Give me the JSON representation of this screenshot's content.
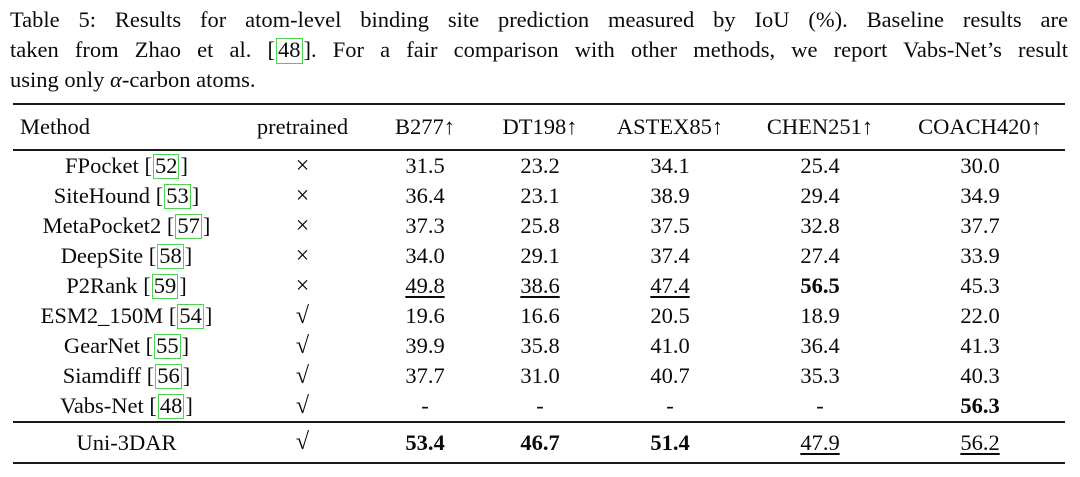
{
  "caption": {
    "line1": "Table 5: Results for atom-level binding site prediction measured by IoU (%). Baseline results are",
    "line2_pre": "taken from Zhao et al. ",
    "bracket_open": "[",
    "cite": "48",
    "bracket_close": "]",
    "line2_post": ". For a fair comparison with other methods, we report Vabs-Net’s result",
    "line3_pre": "using only ",
    "alpha": "α",
    "line3_post": "-carbon atoms."
  },
  "table": {
    "headers": [
      "Method",
      "pretrained",
      "B277↑",
      "DT198↑",
      "ASTEX85↑",
      "CHEN251↑",
      "COACH420↑"
    ],
    "punct": {
      "open": "[",
      "close": "]"
    },
    "citation_border_color": "#4fd24f",
    "rows": [
      {
        "name": "FPocket",
        "cite": "52",
        "mark": "×",
        "v1": "31.5",
        "v2": "23.2",
        "v3": "34.1",
        "v4": "25.4",
        "v5": "30.0"
      },
      {
        "name": "SiteHound",
        "cite": "53",
        "mark": "×",
        "v1": "36.4",
        "v2": "23.1",
        "v3": "38.9",
        "v4": "29.4",
        "v5": "34.9"
      },
      {
        "name": "MetaPocket2",
        "cite": "57",
        "mark": "×",
        "v1": "37.3",
        "v2": "25.8",
        "v3": "37.5",
        "v4": "32.8",
        "v5": "37.7"
      },
      {
        "name": "DeepSite",
        "cite": "58",
        "mark": "×",
        "v1": "34.0",
        "v2": "29.1",
        "v3": "37.4",
        "v4": "27.4",
        "v5": "33.9"
      },
      {
        "name": "P2Rank",
        "cite": "59",
        "mark": "×",
        "v1": "49.8",
        "v2": "38.6",
        "v3": "47.4",
        "v4": "56.5",
        "v5": "45.3"
      },
      {
        "name": "ESM2_150M",
        "cite": "54",
        "mark": "√",
        "v1": "19.6",
        "v2": "16.6",
        "v3": "20.5",
        "v4": "18.9",
        "v5": "22.0"
      },
      {
        "name": "GearNet",
        "cite": "55",
        "mark": "√",
        "v1": "39.9",
        "v2": "35.8",
        "v3": "41.0",
        "v4": "36.4",
        "v5": "41.3"
      },
      {
        "name": "Siamdiff",
        "cite": "56",
        "mark": "√",
        "v1": "37.7",
        "v2": "31.0",
        "v3": "40.7",
        "v4": "35.3",
        "v5": "40.3"
      },
      {
        "name": "Vabs-Net",
        "cite": "48",
        "mark": "√",
        "v1": "-",
        "v2": "-",
        "v3": "-",
        "v4": "-",
        "v5": "56.3"
      }
    ],
    "final_row": {
      "name": "Uni-3DAR",
      "mark": "√",
      "v1": "53.4",
      "v2": "46.7",
      "v3": "51.4",
      "v4": "47.9",
      "v5": "56.2"
    }
  }
}
